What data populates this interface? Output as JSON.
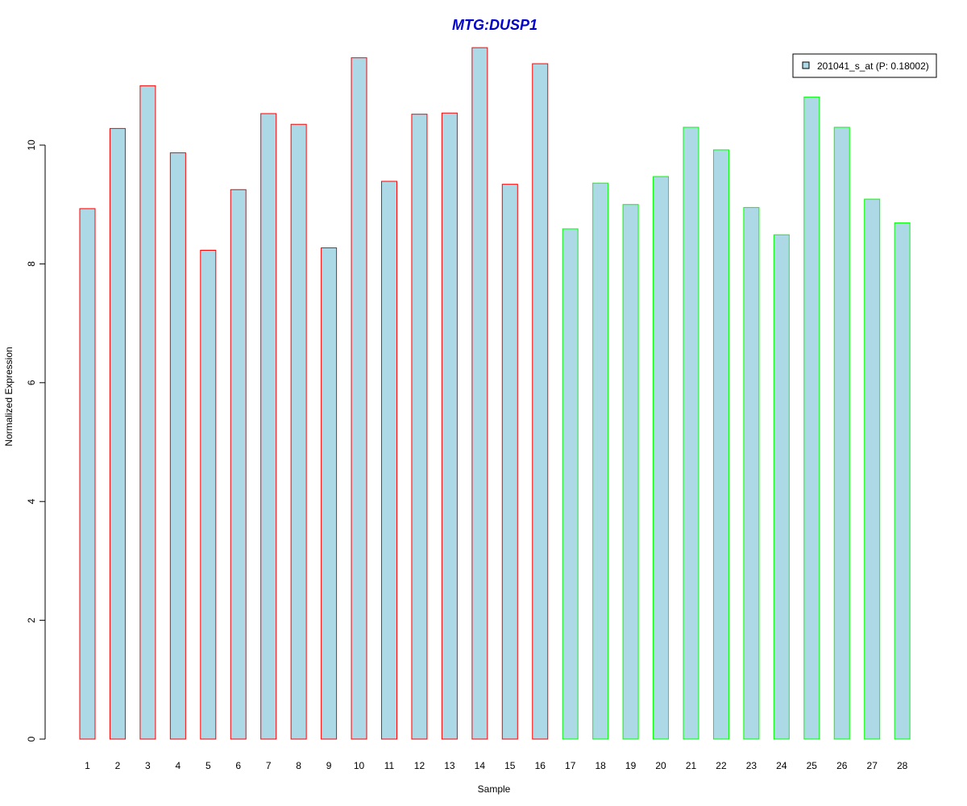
{
  "chart_data": {
    "type": "bar",
    "title": "MTG:DUSP1",
    "xlabel": "Sample",
    "ylabel": "Normalized Expression",
    "ylim": [
      0,
      11.9
    ],
    "yticks": [
      0,
      2,
      4,
      6,
      8,
      10
    ],
    "grid": false,
    "legend_position": "top-right",
    "categories": [
      "1",
      "2",
      "3",
      "4",
      "5",
      "6",
      "7",
      "8",
      "9",
      "10",
      "11",
      "12",
      "13",
      "14",
      "15",
      "16",
      "17",
      "18",
      "19",
      "20",
      "21",
      "22",
      "23",
      "24",
      "25",
      "26",
      "27",
      "28"
    ],
    "series": [
      {
        "name": "201041_s_at (P: 0.18002)",
        "values": [
          8.93,
          10.28,
          11.0,
          9.87,
          8.23,
          9.25,
          10.53,
          10.35,
          8.27,
          11.47,
          9.39,
          10.52,
          10.54,
          11.64,
          9.34,
          11.37,
          8.59,
          9.36,
          9.0,
          9.47,
          10.3,
          9.92,
          8.95,
          8.49,
          10.81,
          10.3,
          9.09,
          8.69
        ]
      }
    ],
    "bar_group": [
      "red",
      "red",
      "red",
      "red",
      "red",
      "red",
      "red",
      "red",
      "red",
      "red",
      "red",
      "red",
      "red",
      "red",
      "red",
      "red",
      "green",
      "green",
      "green",
      "green",
      "green",
      "green",
      "green",
      "green",
      "green",
      "green",
      "green",
      "green"
    ]
  },
  "colors": {
    "title": "#0000CC",
    "bar_fill": "#ADD8E6",
    "red": "#FF0000",
    "green": "#00FF00",
    "axis": "#000000"
  }
}
